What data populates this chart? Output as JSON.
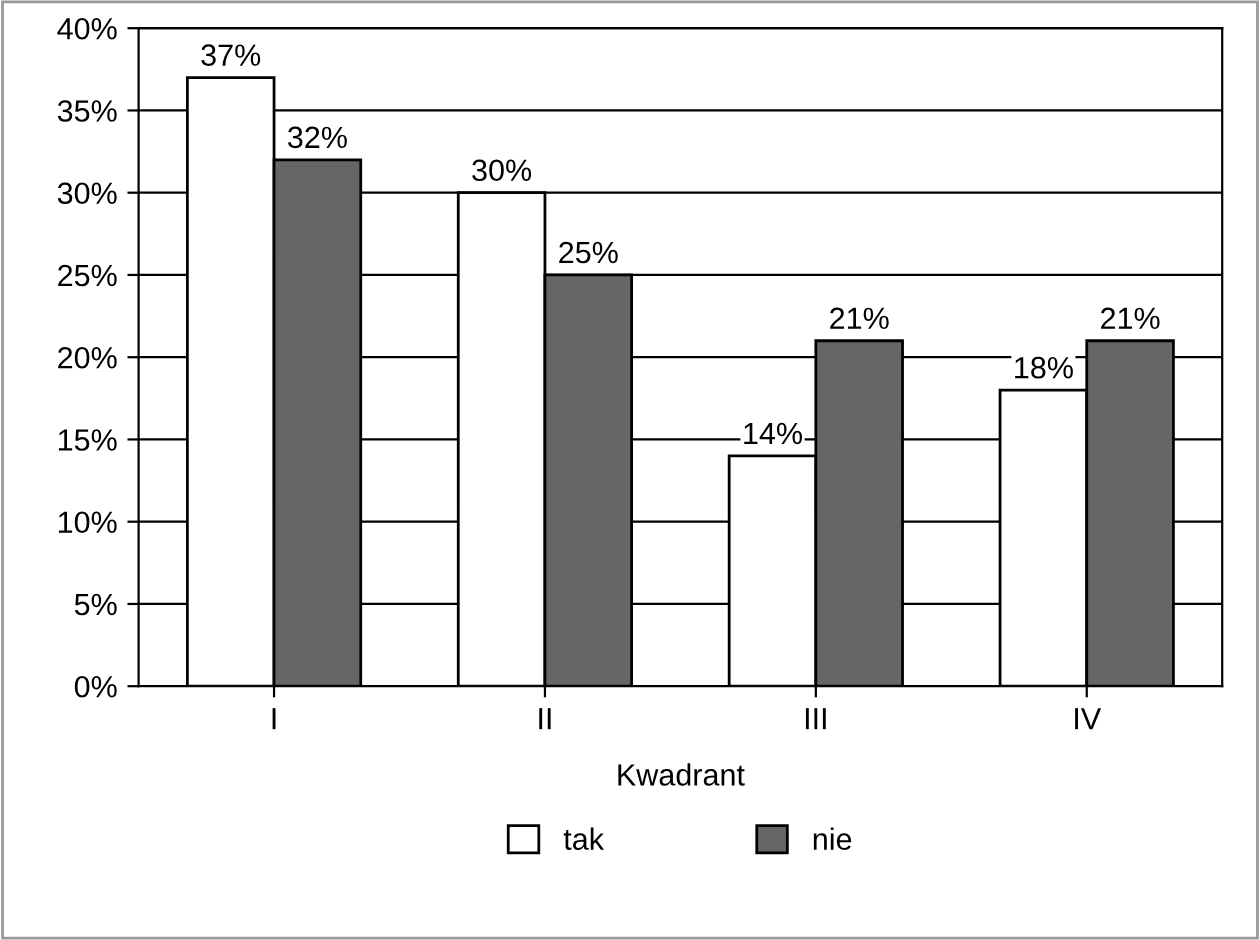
{
  "chart_data": {
    "type": "bar",
    "xlabel": "Kwadrant",
    "categories": [
      "I",
      "II",
      "III",
      "IV"
    ],
    "series": [
      {
        "name": "tak",
        "color": "#ffffff",
        "values": [
          37,
          30,
          14,
          18
        ],
        "value_labels": [
          "37%",
          "30%",
          "14%",
          "18%"
        ]
      },
      {
        "name": "nie",
        "color": "#666666",
        "values": [
          32,
          25,
          21,
          21
        ],
        "value_labels": [
          "32%",
          "25%",
          "21%",
          "21%"
        ]
      }
    ],
    "ylim": [
      0,
      40
    ],
    "yticks": [
      {
        "value": 0,
        "label": "0%"
      },
      {
        "value": 5,
        "label": "5%"
      },
      {
        "value": 10,
        "label": "10%"
      },
      {
        "value": 15,
        "label": "15%"
      },
      {
        "value": 20,
        "label": "20%"
      },
      {
        "value": 25,
        "label": "25%"
      },
      {
        "value": 30,
        "label": "30%"
      },
      {
        "value": 35,
        "label": "35%"
      },
      {
        "value": 40,
        "label": "40%"
      }
    ],
    "grid": "y",
    "legend": "bottom"
  }
}
